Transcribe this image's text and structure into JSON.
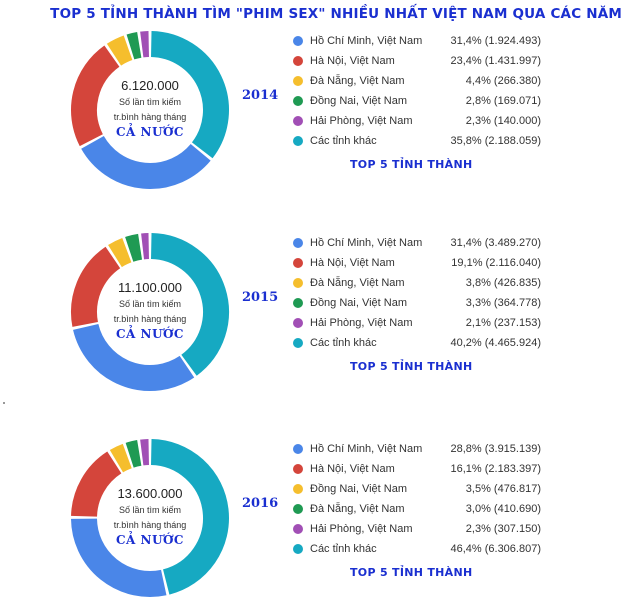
{
  "title": "TOP 5 TỈNH THÀNH TÌM \"PHIM SEX\" NHIỀU NHẤT VIỆT NAM QUA CÁC NĂM",
  "colors": {
    "blue": "#4a86e8",
    "red": "#d4453b",
    "yellow": "#f5be2d",
    "green": "#1f9a53",
    "purple": "#a14fb5",
    "teal": "#16a9c2",
    "accent": "#1a2fd0"
  },
  "chart_data": [
    {
      "type": "pie",
      "year": "2014",
      "center": {
        "total": "6.120.000",
        "line1": "Số lần tìm kiếm",
        "line2": "tr.bình hàng tháng",
        "country": "CẢ NƯỚC"
      },
      "legend_title": "TOP 5 TỈNH THÀNH",
      "slices": [
        {
          "label": "Hồ Chí Minh, Việt Nam",
          "percent": 31.4,
          "value_text": "31,4% (1.924.493)",
          "color": "#4a86e8"
        },
        {
          "label": "Hà Nội, Việt Nam",
          "percent": 23.4,
          "value_text": "23,4% (1.431.997)",
          "color": "#d4453b"
        },
        {
          "label": "Đà Nẵng, Việt Nam",
          "percent": 4.4,
          "value_text": "4,4% (266.380)",
          "color": "#f5be2d"
        },
        {
          "label": "Đồng Nai, Việt Nam",
          "percent": 2.8,
          "value_text": "2,8% (169.071)",
          "color": "#1f9a53"
        },
        {
          "label": "Hải Phòng, Việt Nam",
          "percent": 2.3,
          "value_text": "2,3% (140.000)",
          "color": "#a14fb5"
        },
        {
          "label": "Các tỉnh khác",
          "percent": 35.8,
          "value_text": "35,8% (2.188.059)",
          "color": "#16a9c2"
        }
      ]
    },
    {
      "type": "pie",
      "year": "2015",
      "center": {
        "total": "11.100.000",
        "line1": "Số lần tìm kiếm",
        "line2": "tr.bình hàng tháng",
        "country": "CẢ NƯỚC"
      },
      "legend_title": "TOP 5 TỈNH THÀNH",
      "slices": [
        {
          "label": "Hồ Chí Minh, Việt Nam",
          "percent": 31.4,
          "value_text": "31,4% (3.489.270)",
          "color": "#4a86e8"
        },
        {
          "label": "Hà Nội, Việt Nam",
          "percent": 19.1,
          "value_text": "19,1% (2.116.040)",
          "color": "#d4453b"
        },
        {
          "label": "Đà Nẵng, Việt Nam",
          "percent": 3.8,
          "value_text": "3,8% (426.835)",
          "color": "#f5be2d"
        },
        {
          "label": "Đồng Nai, Việt Nam",
          "percent": 3.3,
          "value_text": "3,3% (364.778)",
          "color": "#1f9a53"
        },
        {
          "label": "Hải Phòng, Việt Nam",
          "percent": 2.1,
          "value_text": "2,1% (237.153)",
          "color": "#a14fb5"
        },
        {
          "label": "Các tỉnh khác",
          "percent": 40.2,
          "value_text": "40,2% (4.465.924)",
          "color": "#16a9c2"
        }
      ]
    },
    {
      "type": "pie",
      "year": "2016",
      "center": {
        "total": "13.600.000",
        "line1": "Số lần tìm kiếm",
        "line2": "tr.bình hàng tháng",
        "country": "CẢ NƯỚC"
      },
      "legend_title": "TOP 5 TỈNH THÀNH",
      "slices": [
        {
          "label": "Hồ Chí Minh, Việt Nam",
          "percent": 28.8,
          "value_text": "28,8% (3.915.139)",
          "color": "#4a86e8"
        },
        {
          "label": "Hà Nội, Việt Nam",
          "percent": 16.1,
          "value_text": "16,1% (2.183.397)",
          "color": "#d4453b"
        },
        {
          "label": "Đồng Nai, Việt Nam",
          "percent": 3.5,
          "value_text": "3,5% (476.817)",
          "color": "#f5be2d"
        },
        {
          "label": "Đà Nẵng, Việt Nam",
          "percent": 3.0,
          "value_text": "3,0% (410.690)",
          "color": "#1f9a53"
        },
        {
          "label": "Hải Phòng, Việt Nam",
          "percent": 2.3,
          "value_text": "2,3% (307.150)",
          "color": "#a14fb5"
        },
        {
          "label": "Các tỉnh khác",
          "percent": 46.4,
          "value_text": "46,4% (6.306.807)",
          "color": "#16a9c2"
        }
      ]
    }
  ]
}
